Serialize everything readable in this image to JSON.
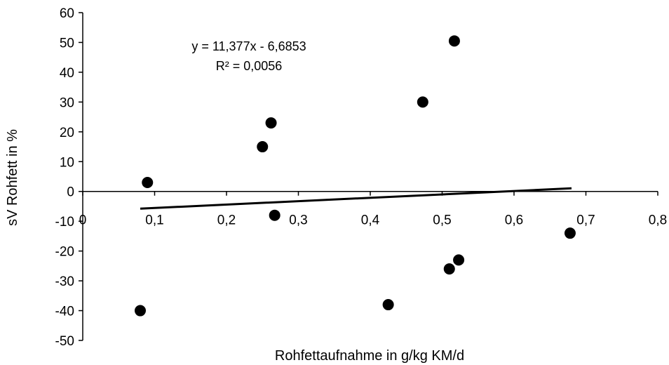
{
  "chart_data": {
    "type": "scatter",
    "xlabel": "Rohfettaufnahme in g/kg KM/d",
    "ylabel": "sV Rohfett in %",
    "xlim": [
      0,
      0.8
    ],
    "ylim": [
      -50,
      60
    ],
    "x_ticks": [
      0,
      0.1,
      0.2,
      0.3,
      0.4,
      0.5,
      0.6,
      0.7,
      0.8
    ],
    "x_tick_labels": [
      "0",
      "0,1",
      "0,2",
      "0,3",
      "0,4",
      "0,5",
      "0,6",
      "0,7",
      "0,8"
    ],
    "y_ticks": [
      -50,
      -40,
      -30,
      -20,
      -10,
      0,
      10,
      20,
      30,
      40,
      50,
      60
    ],
    "y_tick_labels": [
      "-50",
      "-40",
      "-30",
      "-20",
      "-10",
      "0",
      "10",
      "20",
      "30",
      "40",
      "50",
      "60"
    ],
    "grid": false,
    "legend": "none",
    "points": [
      {
        "x": 0.08,
        "y": -40
      },
      {
        "x": 0.09,
        "y": 3
      },
      {
        "x": 0.25,
        "y": 15
      },
      {
        "x": 0.262,
        "y": 23
      },
      {
        "x": 0.267,
        "y": -8
      },
      {
        "x": 0.425,
        "y": -38
      },
      {
        "x": 0.473,
        "y": 30
      },
      {
        "x": 0.51,
        "y": -26
      },
      {
        "x": 0.517,
        "y": 50.5
      },
      {
        "x": 0.523,
        "y": -23
      },
      {
        "x": 0.678,
        "y": -14
      }
    ],
    "trendline": {
      "slope": 11.377,
      "intercept": -6.6853,
      "x_start": 0.08,
      "x_end": 0.68
    },
    "annotations": {
      "equation": "y = 11,377x - 6,6853",
      "r_squared": "R² = 0,0056"
    },
    "colors": {
      "points": "#000000",
      "trendline": "#000000",
      "axes": "#000000"
    }
  }
}
